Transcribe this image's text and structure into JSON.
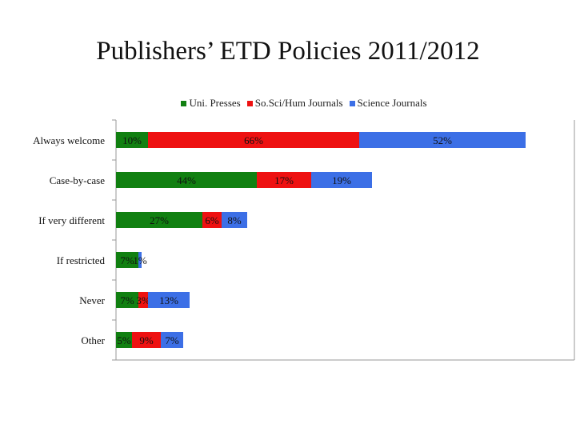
{
  "title": "Publishers’ ETD Policies 2011/2012",
  "colors": {
    "uni_presses": "#118011",
    "sosci_hum": "#ee1111",
    "science": "#3c6fe6",
    "axis": "#999999"
  },
  "chart_data": {
    "type": "bar",
    "orientation": "horizontal",
    "stacked": true,
    "title": "Publishers’ ETD Policies 2011/2012",
    "categories": [
      "Always welcome",
      "Case-by-case",
      "If very different",
      "If restricted",
      "Never",
      "Other"
    ],
    "series": [
      {
        "name": "Uni. Presses",
        "color": "#118011",
        "values": [
          10,
          44,
          27,
          7,
          7,
          5
        ],
        "labels": [
          "10%",
          "44%",
          "27%",
          "7%",
          "7%",
          "5%"
        ]
      },
      {
        "name": "So.Sci/Hum Journals",
        "color": "#ee1111",
        "values": [
          66,
          17,
          6,
          0,
          3,
          9
        ],
        "labels": [
          "66%",
          "17%",
          "6%",
          "",
          "3%",
          "9%"
        ]
      },
      {
        "name": "Science Journals",
        "color": "#3c6fe6",
        "values": [
          52,
          19,
          8,
          1,
          13,
          7
        ],
        "labels": [
          "52%",
          "19%",
          "8%",
          "1%",
          "13%",
          "7%"
        ]
      }
    ],
    "xlim": [
      0,
      140
    ],
    "legend_position": "top",
    "grid": false
  }
}
